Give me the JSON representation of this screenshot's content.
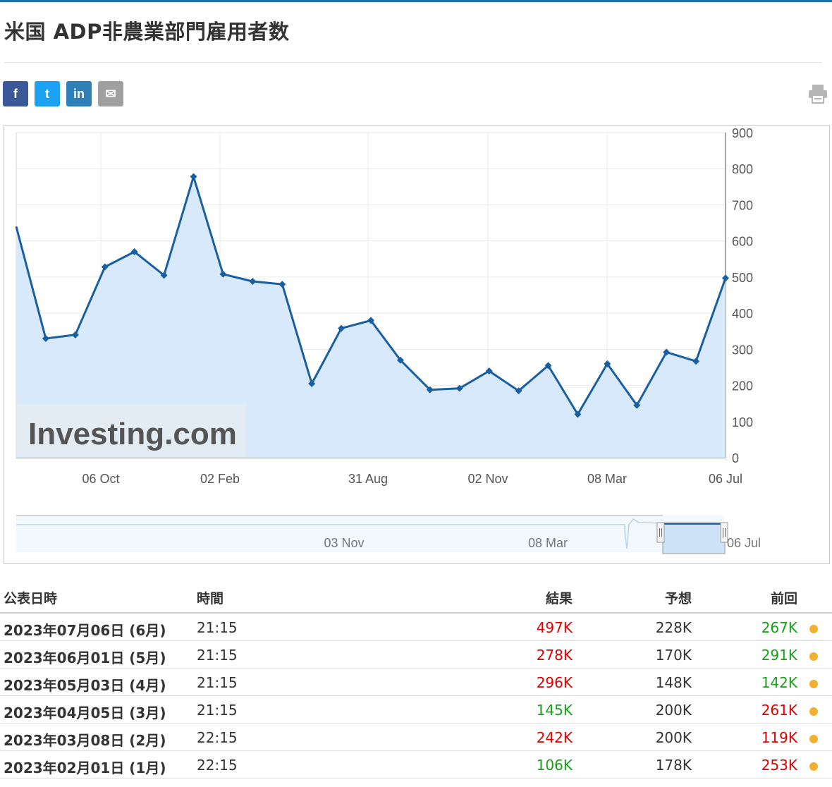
{
  "header": {
    "title": "米国 ADP非農業部門雇用者数"
  },
  "share": [
    {
      "name": "facebook",
      "glyph": "f",
      "color": "#3b5998"
    },
    {
      "name": "twitter",
      "glyph": "t",
      "color": "#1da1f2"
    },
    {
      "name": "linkedin",
      "glyph": "in",
      "color": "#2f7fb8"
    },
    {
      "name": "email",
      "glyph": "✉",
      "color": "#a0a0a0"
    }
  ],
  "chart_data": {
    "type": "area",
    "values": [
      640,
      330,
      340,
      528,
      570,
      505,
      778,
      508,
      488,
      480,
      205,
      358,
      380,
      270,
      188,
      192,
      240,
      185,
      255,
      120,
      260,
      145,
      292,
      267,
      497
    ],
    "ylim": [
      0,
      900
    ],
    "y_ticks": [
      "900",
      "800",
      "700",
      "600",
      "500",
      "400",
      "300",
      "200",
      "100",
      "0"
    ],
    "x_ticks": [
      "06 Oct",
      "02 Feb",
      "31 Aug",
      "02 Nov",
      "08 Mar",
      "06 Jul"
    ],
    "navigator_ticks": [
      "03 Nov",
      "08 Mar",
      "06 Jul"
    ],
    "watermark": "Investing.com",
    "line_color": "#1a5fa0",
    "fill_color": "#d8e9fb",
    "grid": true
  },
  "table": {
    "headers": [
      "公表日時",
      "時間",
      "結果",
      "予想",
      "前回"
    ],
    "rows": [
      {
        "date": "2023年07月06日 (6月)",
        "time": "21:15",
        "actual": "497K",
        "actual_color": "#e00000",
        "forecast": "228K",
        "previous": "267K",
        "previous_color": "#17a017"
      },
      {
        "date": "2023年06月01日 (5月)",
        "time": "21:15",
        "actual": "278K",
        "actual_color": "#e00000",
        "forecast": "170K",
        "previous": "291K",
        "previous_color": "#17a017"
      },
      {
        "date": "2023年05月03日 (4月)",
        "time": "21:15",
        "actual": "296K",
        "actual_color": "#e00000",
        "forecast": "148K",
        "previous": "142K",
        "previous_color": "#17a017"
      },
      {
        "date": "2023年04月05日 (3月)",
        "time": "21:15",
        "actual": "145K",
        "actual_color": "#17a017",
        "forecast": "200K",
        "previous": "261K",
        "previous_color": "#e00000"
      },
      {
        "date": "2023年03月08日 (2月)",
        "time": "22:15",
        "actual": "242K",
        "actual_color": "#e00000",
        "forecast": "200K",
        "previous": "119K",
        "previous_color": "#e00000"
      },
      {
        "date": "2023年02月01日 (1月)",
        "time": "22:15",
        "actual": "106K",
        "actual_color": "#17a017",
        "forecast": "178K",
        "previous": "253K",
        "previous_color": "#e00000"
      }
    ]
  }
}
